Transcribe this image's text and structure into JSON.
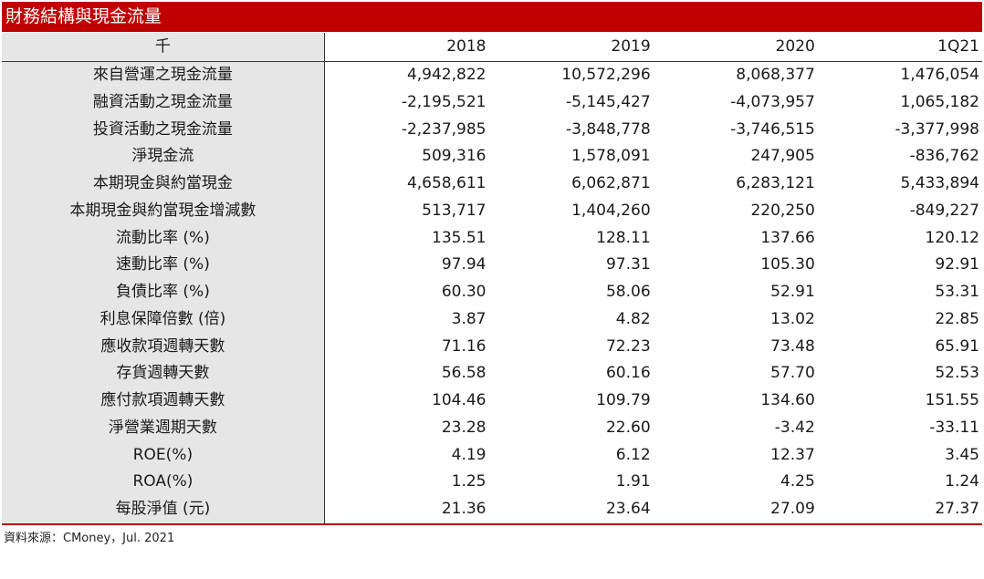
{
  "title": "財務結構與現金流量",
  "table": {
    "unit_label": "千",
    "columns": [
      "2018",
      "2019",
      "2020",
      "1Q21"
    ],
    "rows": [
      {
        "label": "來自營運之現金流量",
        "values": [
          "4,942,822",
          "10,572,296",
          "8,068,377",
          "1,476,054"
        ]
      },
      {
        "label": "融資活動之現金流量",
        "values": [
          "-2,195,521",
          "-5,145,427",
          "-4,073,957",
          "1,065,182"
        ]
      },
      {
        "label": "投資活動之現金流量",
        "values": [
          "-2,237,985",
          "-3,848,778",
          "-3,746,515",
          "-3,377,998"
        ]
      },
      {
        "label": "淨現金流",
        "values": [
          "509,316",
          "1,578,091",
          "247,905",
          "-836,762"
        ]
      },
      {
        "label": "本期現金與約當現金",
        "values": [
          "4,658,611",
          "6,062,871",
          "6,283,121",
          "5,433,894"
        ]
      },
      {
        "label": "本期現金與約當現金增減數",
        "values": [
          "513,717",
          "1,404,260",
          "220,250",
          "-849,227"
        ]
      },
      {
        "label": "流動比率 (%)",
        "values": [
          "135.51",
          "128.11",
          "137.66",
          "120.12"
        ]
      },
      {
        "label": "速動比率 (%)",
        "values": [
          "97.94",
          "97.31",
          "105.30",
          "92.91"
        ]
      },
      {
        "label": "負債比率 (%)",
        "values": [
          "60.30",
          "58.06",
          "52.91",
          "53.31"
        ]
      },
      {
        "label": "利息保障倍數 (倍)",
        "values": [
          "3.87",
          "4.82",
          "13.02",
          "22.85"
        ]
      },
      {
        "label": "應收款項週轉天數",
        "values": [
          "71.16",
          "72.23",
          "73.48",
          "65.91"
        ]
      },
      {
        "label": "存貨週轉天數",
        "values": [
          "56.58",
          "60.16",
          "57.70",
          "52.53"
        ]
      },
      {
        "label": "應付款項週轉天數",
        "values": [
          "104.46",
          "109.79",
          "134.60",
          "151.55"
        ]
      },
      {
        "label": "淨營業週期天數",
        "values": [
          "23.28",
          "22.60",
          "-3.42",
          "-33.11"
        ]
      },
      {
        "label": "ROE(%)",
        "values": [
          "4.19",
          "6.12",
          "12.37",
          "3.45"
        ]
      },
      {
        "label": "ROA(%)",
        "values": [
          "1.25",
          "1.91",
          "4.25",
          "1.24"
        ]
      },
      {
        "label": "每股淨值 (元)",
        "values": [
          "21.36",
          "23.64",
          "27.09",
          "27.37"
        ]
      }
    ]
  },
  "source": "資料來源：CMoney，Jul. 2021",
  "colors": {
    "accent": "#c00000",
    "label_bg": "#e6e6e6"
  }
}
